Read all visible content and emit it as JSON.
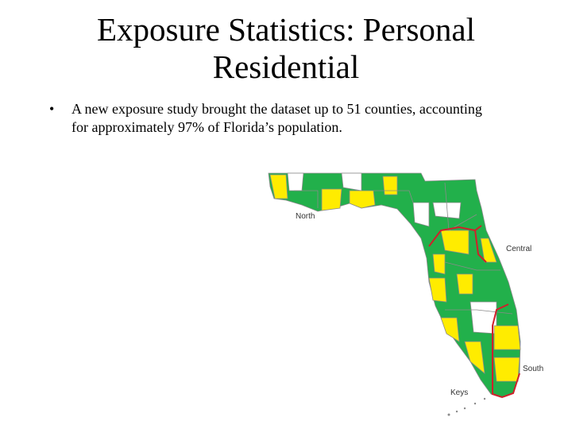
{
  "header": {
    "title": "Exposure Statistics: Personal Residential"
  },
  "bullets": [
    "A new exposure study brought the dataset up to 51 counties, accounting for approximately 97% of Florida’s population."
  ],
  "map": {
    "regions": [
      "North",
      "Central",
      "South",
      "Keys"
    ]
  }
}
